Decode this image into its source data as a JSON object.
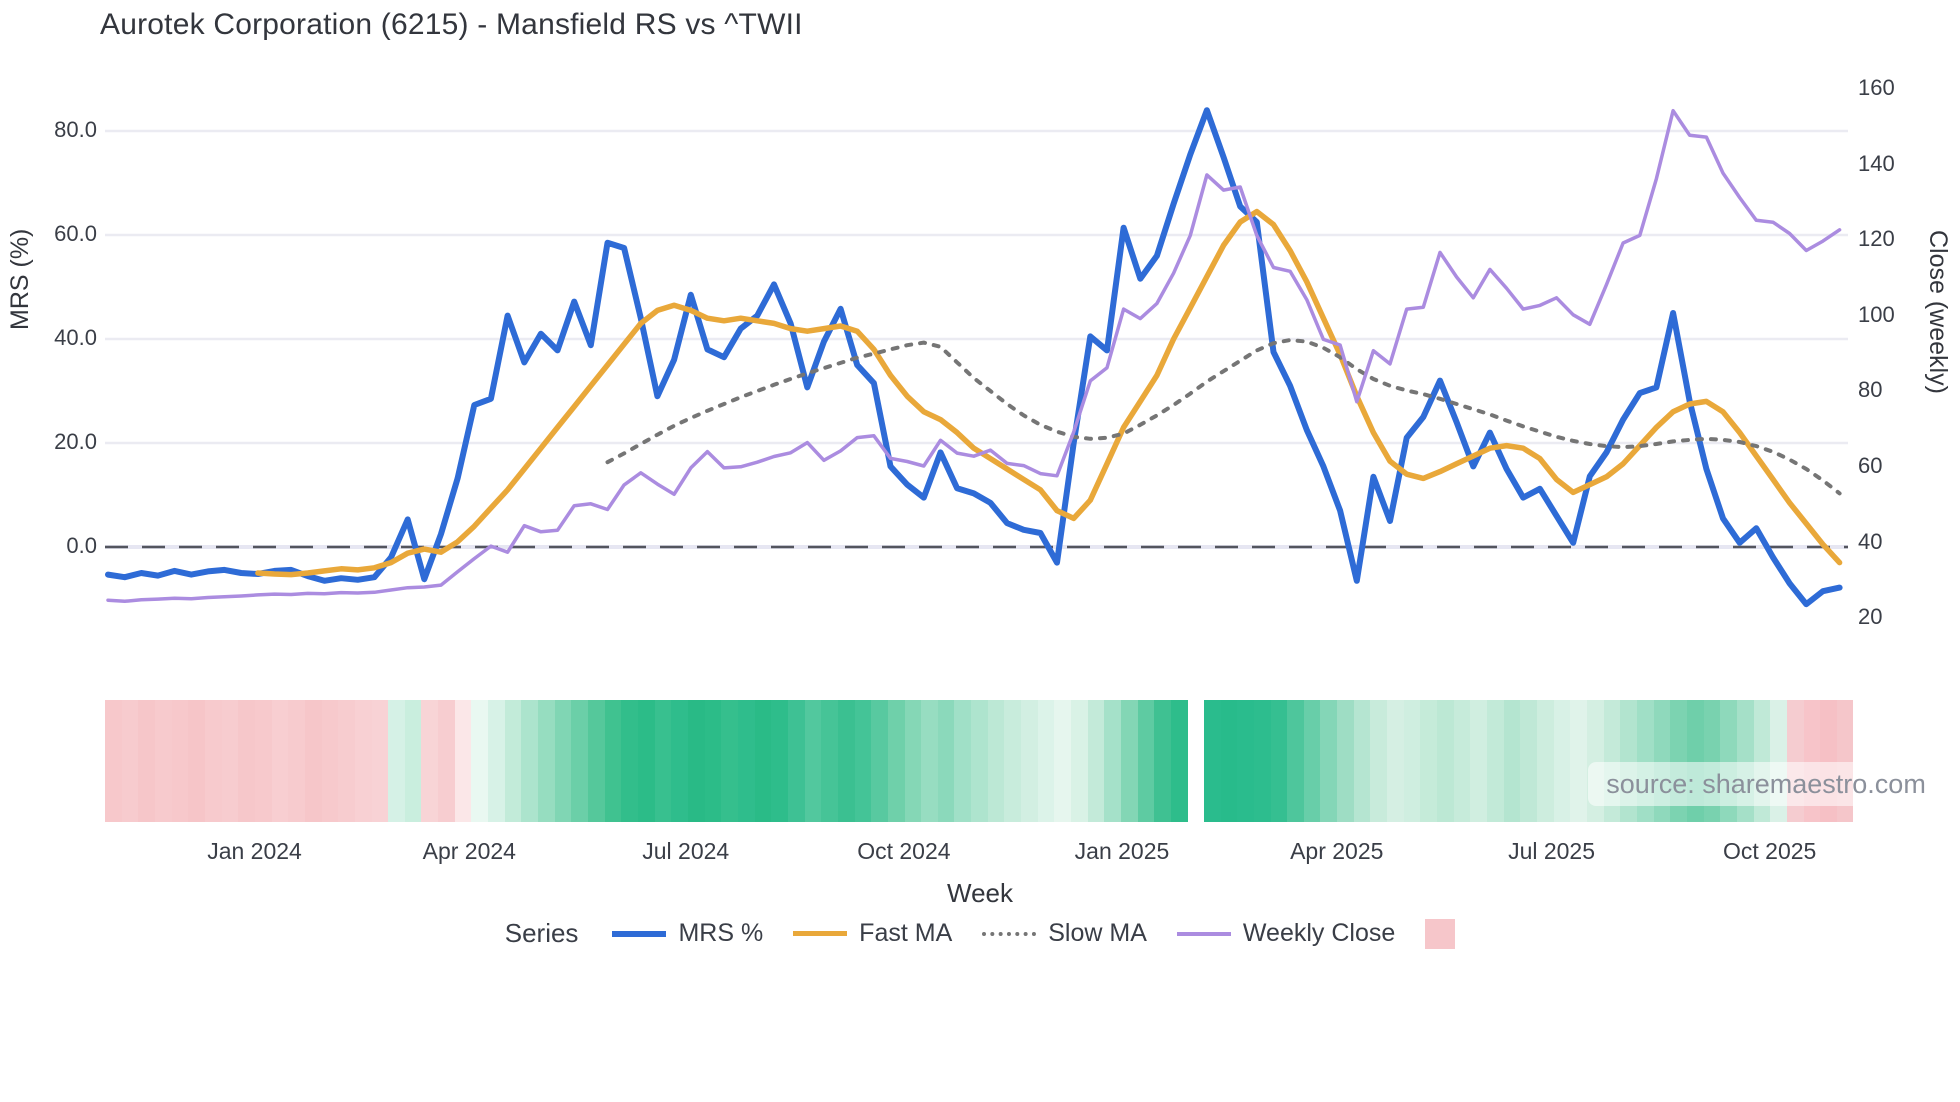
{
  "title": "Aurotek Corporation (6215) - Mansfield RS vs ^TWII",
  "watermark": "source: sharemaestro.com",
  "legend": {
    "title": "Series",
    "items": [
      {
        "label": "MRS %",
        "color": "#2e6bd6",
        "dash": "solid",
        "thickness": 6
      },
      {
        "label": "Fast MA",
        "color": "#e9a83a",
        "dash": "solid",
        "thickness": 5
      },
      {
        "label": "Slow MA",
        "color": "#757575",
        "dash": "dotted",
        "thickness": 4
      },
      {
        "label": "Weekly Close",
        "color": "#ab8ce0",
        "dash": "solid",
        "thickness": 4
      }
    ],
    "heat_swatch_color": "#f6c6ca"
  },
  "colors": {
    "grid": "#ebebf2",
    "zero_line": "#53555e",
    "zero_band": "#e6e6f2",
    "text": "#3a3e47"
  },
  "chart_data": {
    "type": "line",
    "title": "Aurotek Corporation (6215) - Mansfield RS vs ^TWII",
    "xlabel": "Week",
    "x_is_weekly_index": true,
    "week_count": 105,
    "x_tick_labels": [
      "Jan 2024",
      "Apr 2024",
      "Jul 2024",
      "Oct 2024",
      "Jan 2025",
      "Apr 2025",
      "Jul 2025",
      "Oct 2025"
    ],
    "x_tick_week_index": [
      8.8,
      21.7,
      34.7,
      47.8,
      60.9,
      73.8,
      86.7,
      99.8
    ],
    "left_axis": {
      "label": "MRS (%)",
      "tick_values": [
        80.0,
        60.0,
        40.0,
        20.0,
        0.0
      ],
      "zero_dashed_line": true
    },
    "right_axis": {
      "label": "Close (weekly)",
      "tick_values": [
        160,
        140,
        120,
        100,
        80,
        60,
        40,
        20
      ]
    },
    "grid": "horizontal-only",
    "legend_position": "bottom-center",
    "series": [
      {
        "name": "MRS %",
        "axis": "left",
        "color": "#2e6bd6",
        "style": "solid",
        "width": 6,
        "values": [
          -5.3,
          -5.8,
          -5.0,
          -5.5,
          -4.6,
          -5.3,
          -4.7,
          -4.4,
          -5.0,
          -5.2,
          -4.6,
          -4.4,
          -5.6,
          -6.5,
          -6.0,
          -6.3,
          -5.8,
          -2.0,
          5.3,
          -6.2,
          2.5,
          13.2,
          27.3,
          28.5,
          44.5,
          35.5,
          41.0,
          37.8,
          47.2,
          38.8,
          58.5,
          57.5,
          44.0,
          29.0,
          36.0,
          48.5,
          38.0,
          36.5,
          42.0,
          44.5,
          50.5,
          43.0,
          30.7,
          39.5,
          45.8,
          35.0,
          31.5,
          15.5,
          12.0,
          9.5,
          18.2,
          11.3,
          10.3,
          8.5,
          4.6,
          3.3,
          2.7,
          -3.0,
          20.0,
          40.5,
          37.8,
          61.4,
          51.6,
          56.0,
          66.0,
          75.5,
          84.0,
          75.0,
          65.5,
          62.5,
          37.5,
          31.0,
          22.5,
          15.5,
          7.0,
          -6.5,
          13.5,
          5.0,
          21.0,
          25.0,
          32.0,
          24.0,
          15.5,
          22.0,
          15.0,
          9.5,
          11.2,
          6.0,
          0.8,
          13.6,
          18.2,
          24.5,
          29.6,
          30.7,
          45.0,
          28.0,
          15.0,
          5.5,
          0.8,
          3.6,
          -2.0,
          -7.0,
          -11.0,
          -8.5,
          -7.8
        ]
      },
      {
        "name": "Fast MA",
        "axis": "left",
        "color": "#e9a83a",
        "style": "solid",
        "width": 5.5,
        "values": [
          null,
          null,
          null,
          null,
          null,
          null,
          null,
          null,
          null,
          -5.0,
          -5.2,
          -5.3,
          -5.0,
          -4.6,
          -4.2,
          -4.4,
          -4.0,
          -3.0,
          -1.2,
          -0.4,
          -1.0,
          1.0,
          4.0,
          7.5,
          11.0,
          15.0,
          19.0,
          23.0,
          27.0,
          31.0,
          35.0,
          39.0,
          43.0,
          45.5,
          46.5,
          45.5,
          44.0,
          43.5,
          44.0,
          43.5,
          43.0,
          42.0,
          41.5,
          42.0,
          42.5,
          41.5,
          38.0,
          33.0,
          29.0,
          26.0,
          24.5,
          22.0,
          19.0,
          17.0,
          15.0,
          13.0,
          11.0,
          7.0,
          5.5,
          9.0,
          16.0,
          23.0,
          28.0,
          33.0,
          40.0,
          46.0,
          52.0,
          58.0,
          62.5,
          64.5,
          62.0,
          57.0,
          51.0,
          44.0,
          37.0,
          29.0,
          22.0,
          16.5,
          14.0,
          13.2,
          14.5,
          16.0,
          17.5,
          19.0,
          19.5,
          19.0,
          17.0,
          13.0,
          10.5,
          12.0,
          13.5,
          16.0,
          19.5,
          23.0,
          26.0,
          27.5,
          28.0,
          26.0,
          22.0,
          17.5,
          13.0,
          8.5,
          4.5,
          0.5,
          -3.0
        ]
      },
      {
        "name": "Slow MA",
        "axis": "left",
        "color": "#757575",
        "style": "dotted",
        "width": 4,
        "values": [
          null,
          null,
          null,
          null,
          null,
          null,
          null,
          null,
          null,
          null,
          null,
          null,
          null,
          null,
          null,
          null,
          null,
          null,
          null,
          null,
          null,
          null,
          null,
          null,
          null,
          null,
          null,
          null,
          null,
          null,
          16.3,
          18.0,
          19.8,
          21.6,
          23.3,
          24.8,
          26.2,
          27.5,
          28.8,
          30.0,
          31.2,
          32.3,
          33.4,
          34.4,
          35.4,
          36.4,
          37.2,
          38.0,
          38.8,
          39.3,
          38.5,
          35.5,
          32.5,
          30.0,
          27.5,
          25.3,
          23.5,
          22.2,
          21.2,
          20.8,
          21.0,
          21.8,
          23.5,
          25.3,
          27.3,
          29.5,
          31.8,
          33.8,
          35.8,
          37.8,
          39.2,
          39.8,
          39.5,
          38.3,
          36.5,
          34.2,
          32.3,
          31.0,
          30.1,
          29.4,
          28.5,
          27.5,
          26.5,
          25.5,
          24.3,
          23.2,
          22.2,
          21.2,
          20.4,
          19.8,
          19.4,
          19.2,
          19.4,
          19.8,
          20.3,
          20.6,
          20.8,
          20.6,
          20.2,
          19.4,
          18.3,
          16.8,
          15.0,
          12.8,
          10.3
        ]
      },
      {
        "name": "Weekly Close",
        "axis": "right",
        "color": "#ab8ce0",
        "style": "solid",
        "width": 3.5,
        "values": [
          24.5,
          24.2,
          24.6,
          24.8,
          25.0,
          24.9,
          25.2,
          25.4,
          25.6,
          25.9,
          26.1,
          26.0,
          26.3,
          26.2,
          26.5,
          26.4,
          26.6,
          27.2,
          27.8,
          28.0,
          28.5,
          32.0,
          35.5,
          38.8,
          37.2,
          44.2,
          42.6,
          43.0,
          49.5,
          50.0,
          48.5,
          55.0,
          58.2,
          55.2,
          52.5,
          59.5,
          63.8,
          59.5,
          59.8,
          61.0,
          62.5,
          63.5,
          66.2,
          61.5,
          64.0,
          67.5,
          68.0,
          62.0,
          61.2,
          60.0,
          66.8,
          63.4,
          62.6,
          64.2,
          60.7,
          60.1,
          58.0,
          57.4,
          69.0,
          82.5,
          86.0,
          101.5,
          99.0,
          103.0,
          111.0,
          121.0,
          137.0,
          133.0,
          133.8,
          121.0,
          112.5,
          111.5,
          104.0,
          93.5,
          92.0,
          77.0,
          90.5,
          87.0,
          101.5,
          102.0,
          116.5,
          110.0,
          104.5,
          112.0,
          107.0,
          101.5,
          102.5,
          104.5,
          100.0,
          97.5,
          108.0,
          119.0,
          121.0,
          136.0,
          154.0,
          147.5,
          147.0,
          137.5,
          131.0,
          125.0,
          124.5,
          121.5,
          117.0,
          119.5,
          122.5
        ]
      }
    ],
    "heatmap_strips": [
      {
        "start_week": 0,
        "colors": [
          "#f7c8cb",
          "#f7cbce",
          "#f6c6c9",
          "#f7cacd",
          "#f7c8cb",
          "#f6c5c8",
          "#f7cacd",
          "#f7cccf",
          "#f6c7ca",
          "#f7c9cc",
          "#f8ced1",
          "#f7cbce",
          "#f6c6c9",
          "#f7c9cc",
          "#f7cccf",
          "#f8d0d3",
          "#f8d2d5",
          "#d5f1e6",
          "#c9eede",
          "#f8d4d6",
          "#f7cdd0",
          "#fbe7e8",
          "#e9f8f1",
          "#d7f2e7",
          "#c2ebd9",
          "#ace4cd",
          "#96ddc0",
          "#80d6b4",
          "#6bcfa8",
          "#55c89b",
          "#40c290",
          "#32be8b",
          "#2cbc88",
          "#38c08f",
          "#2fbd8c",
          "#29ba86",
          "#2cbc88",
          "#35bf8d",
          "#2fbd8c",
          "#2abb87",
          "#2ebd8b",
          "#3ec194",
          "#52c89e",
          "#46c497",
          "#3bc091",
          "#44c497",
          "#58c9a0",
          "#6fd0aa",
          "#85d7b6",
          "#97ddc1",
          "#8bd9bb",
          "#a0e0c7",
          "#aee4ce",
          "#bce8d5",
          "#c8ecdc",
          "#d2efe2",
          "#dcf3e9",
          "#e6f6ee",
          "#d9f2e6",
          "#c3ead9",
          "#a5e1c9",
          "#83d6b5",
          "#5ecba2",
          "#3fc192",
          "#2ebd8b"
        ]
      },
      {
        "start_week": 66,
        "colors": [
          "#2abc8d",
          "#28bb8b",
          "#2abc8d",
          "#2dbd8e",
          "#35bf91",
          "#4ec69c",
          "#68cea9",
          "#84d6b7",
          "#9eddc4",
          "#b5e5d1",
          "#c8ebdb",
          "#d5efe3",
          "#cfeee0",
          "#c5ebd9",
          "#bce8d4",
          "#c6ebda",
          "#d0eee0",
          "#c2ead8",
          "#b4e5d0",
          "#bfe8d6",
          "#cdedde",
          "#d8f1e6",
          "#e0f3ea",
          "#d4efe2",
          "#c4ead9",
          "#b2e4cf",
          "#a0dfc6",
          "#8fd9bc",
          "#7cd3b1",
          "#6fcfaa",
          "#79d2af",
          "#8ed9bb",
          "#a5e0c8",
          "#c0e9d7",
          "#daf1e7",
          "#f5ccd0",
          "#f7c4c9",
          "#f6c0c5",
          "#f5c6ca"
        ]
      }
    ]
  }
}
